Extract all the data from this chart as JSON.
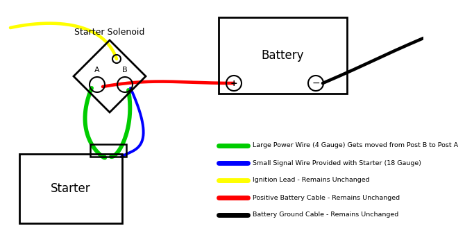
{
  "background_color": "#ffffff",
  "solenoid_label": "Starter Solenoid",
  "battery_label": "Battery",
  "starter_label": "Starter",
  "post_a_label": "A",
  "post_b_label": "B",
  "legend_entries": [
    {
      "color": "#00cc00",
      "text": "Large Power Wire (4 Gauge) Gets moved from Post B to Post A"
    },
    {
      "color": "#0000ff",
      "text": "Small Signal Wire Provided with Starter (18 Gauge)"
    },
    {
      "color": "#ffff00",
      "text": "Ignition Lead - Remains Unchanged"
    },
    {
      "color": "#ff0000",
      "text": "Positive Battery Cable - Remains Unchanged"
    },
    {
      "color": "#000000",
      "text": "Battery Ground Cable - Remains Unchanged"
    }
  ]
}
